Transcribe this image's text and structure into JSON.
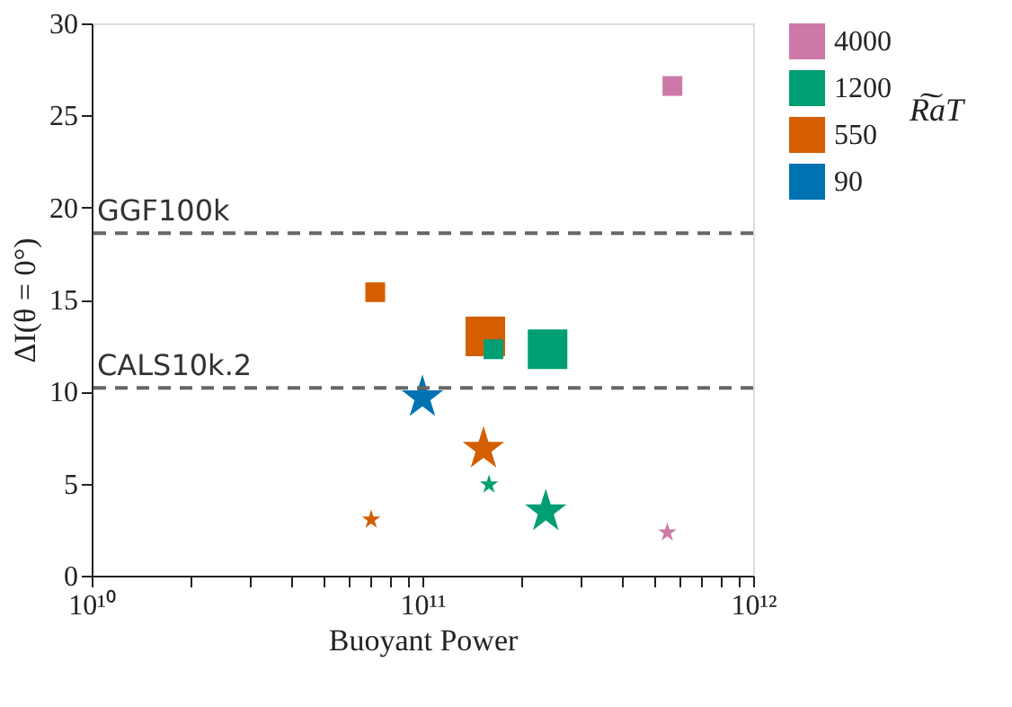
{
  "chart_data": {
    "type": "bubble",
    "xlabel": "Buoyant Power",
    "ylabel": "ΔI(θ = 0°)",
    "legend_title": "R͠aT",
    "log": "x",
    "grid": false,
    "legend": "right",
    "xlim": [
      10000000000.0,
      1000000000000.0
    ],
    "xticks": [
      {
        "value": 10000000000.0,
        "label": "10¹⁰"
      },
      {
        "value": 20000000000.0,
        "label": null
      },
      {
        "value": 30000000000.0,
        "label": null
      },
      {
        "value": 40000000000.0,
        "label": null
      },
      {
        "value": 50000000000.0,
        "label": null
      },
      {
        "value": 60000000000.0,
        "label": null
      },
      {
        "value": 70000000000.0,
        "label": null
      },
      {
        "value": 80000000000.0,
        "label": null
      },
      {
        "value": 90000000000.0,
        "label": null
      },
      {
        "value": 100000000000.0,
        "label": "10¹¹"
      },
      {
        "value": 200000000000.0,
        "label": null
      },
      {
        "value": 300000000000.0,
        "label": null
      },
      {
        "value": 400000000000.0,
        "label": null
      },
      {
        "value": 500000000000.0,
        "label": null
      },
      {
        "value": 600000000000.0,
        "label": null
      },
      {
        "value": 700000000000.0,
        "label": null
      },
      {
        "value": 800000000000.0,
        "label": null
      },
      {
        "value": 900000000000.0,
        "label": null
      },
      {
        "value": 1000000000000.0,
        "label": "10¹²"
      }
    ],
    "ylim": [
      0,
      30
    ],
    "yticks": [
      0,
      5,
      10,
      15,
      20,
      25,
      30
    ],
    "series": [
      {
        "name": "90",
        "color": "#0072b2",
        "marker": "star",
        "x": [
          100000000000.0
        ],
        "values": [
          9.8
        ],
        "sizes": [
          0.36
        ]
      },
      {
        "name": "550",
        "color": "#d55e00",
        "marker": "square",
        "x": [
          72000000000.0,
          155000000000.0
        ],
        "values": [
          15.4,
          13.0
        ],
        "sizes": [
          0.25,
          1
        ]
      },
      {
        "color": "#d55e00",
        "marker": "star",
        "x": [
          70000000000.0,
          153000000000.0
        ],
        "values": [
          3.1,
          7.0
        ],
        "sizes": [
          0.07,
          0.36
        ]
      },
      {
        "name": "1200",
        "color": "#009e73",
        "marker": "square",
        "x": [
          164000000000.0,
          239000000000.0
        ],
        "values": [
          12.3,
          12.3
        ],
        "sizes": [
          0.25,
          1
        ]
      },
      {
        "color": "#009e73",
        "marker": "star",
        "x": [
          159000000000.0,
          236000000000.0
        ],
        "values": [
          5.0,
          3.6
        ],
        "sizes": [
          0.07,
          0.36
        ]
      },
      {
        "name": "4000",
        "color": "#cc79a7",
        "marker": "square",
        "x": [
          570000000000.0
        ],
        "values": [
          26.6
        ],
        "sizes": [
          0.25
        ]
      },
      {
        "color": "#cc79a7",
        "marker": "star",
        "x": [
          550000000000.0
        ],
        "values": [
          2.4
        ],
        "sizes": [
          0.07
        ]
      }
    ],
    "ref_lines": [
      {
        "axis": "y",
        "value": 18.6,
        "label": "GGF100k",
        "color": "#666666",
        "line_style": "dashed"
      },
      {
        "axis": "y",
        "value": 10.2,
        "label": "CALS10k.2",
        "color": "#666666",
        "line_style": "dashed"
      }
    ]
  }
}
